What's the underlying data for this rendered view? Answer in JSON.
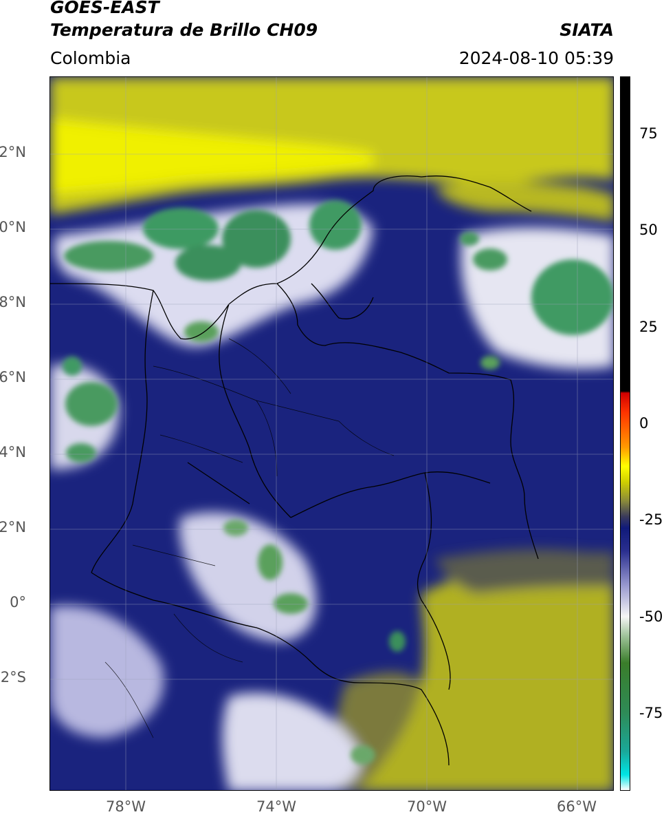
{
  "header": {
    "satellite": "GOES-EAST",
    "product": "Temperatura de Brillo CH09",
    "region": "Colombia",
    "agency": "SIATA",
    "datetime": "2024-08-10 05:39"
  },
  "map": {
    "lat_ticks": [
      "12°N",
      "10°N",
      "8°N",
      "6°N",
      "4°N",
      "2°N",
      "0°",
      "2°S"
    ],
    "lon_ticks": [
      "78°W",
      "74°W",
      "70°W",
      "66°W"
    ],
    "lat_range": [
      -4.9,
      14.1
    ],
    "lon_range": [
      -80.0,
      -65.0
    ],
    "gridlines": true,
    "base_color": "#1a237e"
  },
  "colorbar": {
    "range": [
      -95,
      90
    ],
    "labels": [
      "75",
      "50",
      "25",
      "0",
      "-25",
      "-50",
      "-75"
    ],
    "label_values": [
      75,
      50,
      25,
      0,
      -25,
      -50,
      -75
    ],
    "stops": [
      {
        "value": -95,
        "color": "#ffffff"
      },
      {
        "value": -91,
        "color": "#00e5e5"
      },
      {
        "value": -85,
        "color": "#1aa89a"
      },
      {
        "value": -75,
        "color": "#2e8b57"
      },
      {
        "value": -62,
        "color": "#3a7d2a"
      },
      {
        "value": -55,
        "color": "#9fc39a"
      },
      {
        "value": -50,
        "color": "#f5f5f5"
      },
      {
        "value": -42,
        "color": "#9a9ad0"
      },
      {
        "value": -33,
        "color": "#2a2f8f"
      },
      {
        "value": -27,
        "color": "#101a7a"
      },
      {
        "value": -24,
        "color": "#3b3b5a"
      },
      {
        "value": -20,
        "color": "#8a8a3a"
      },
      {
        "value": -15,
        "color": "#d0d000"
      },
      {
        "value": -11,
        "color": "#ffff00"
      },
      {
        "value": -6,
        "color": "#ff9900"
      },
      {
        "value": 3,
        "color": "#ff3300"
      },
      {
        "value": 8,
        "color": "#d00000"
      },
      {
        "value": 8.5,
        "color": "#000000"
      },
      {
        "value": 90,
        "color": "#000000"
      }
    ]
  }
}
